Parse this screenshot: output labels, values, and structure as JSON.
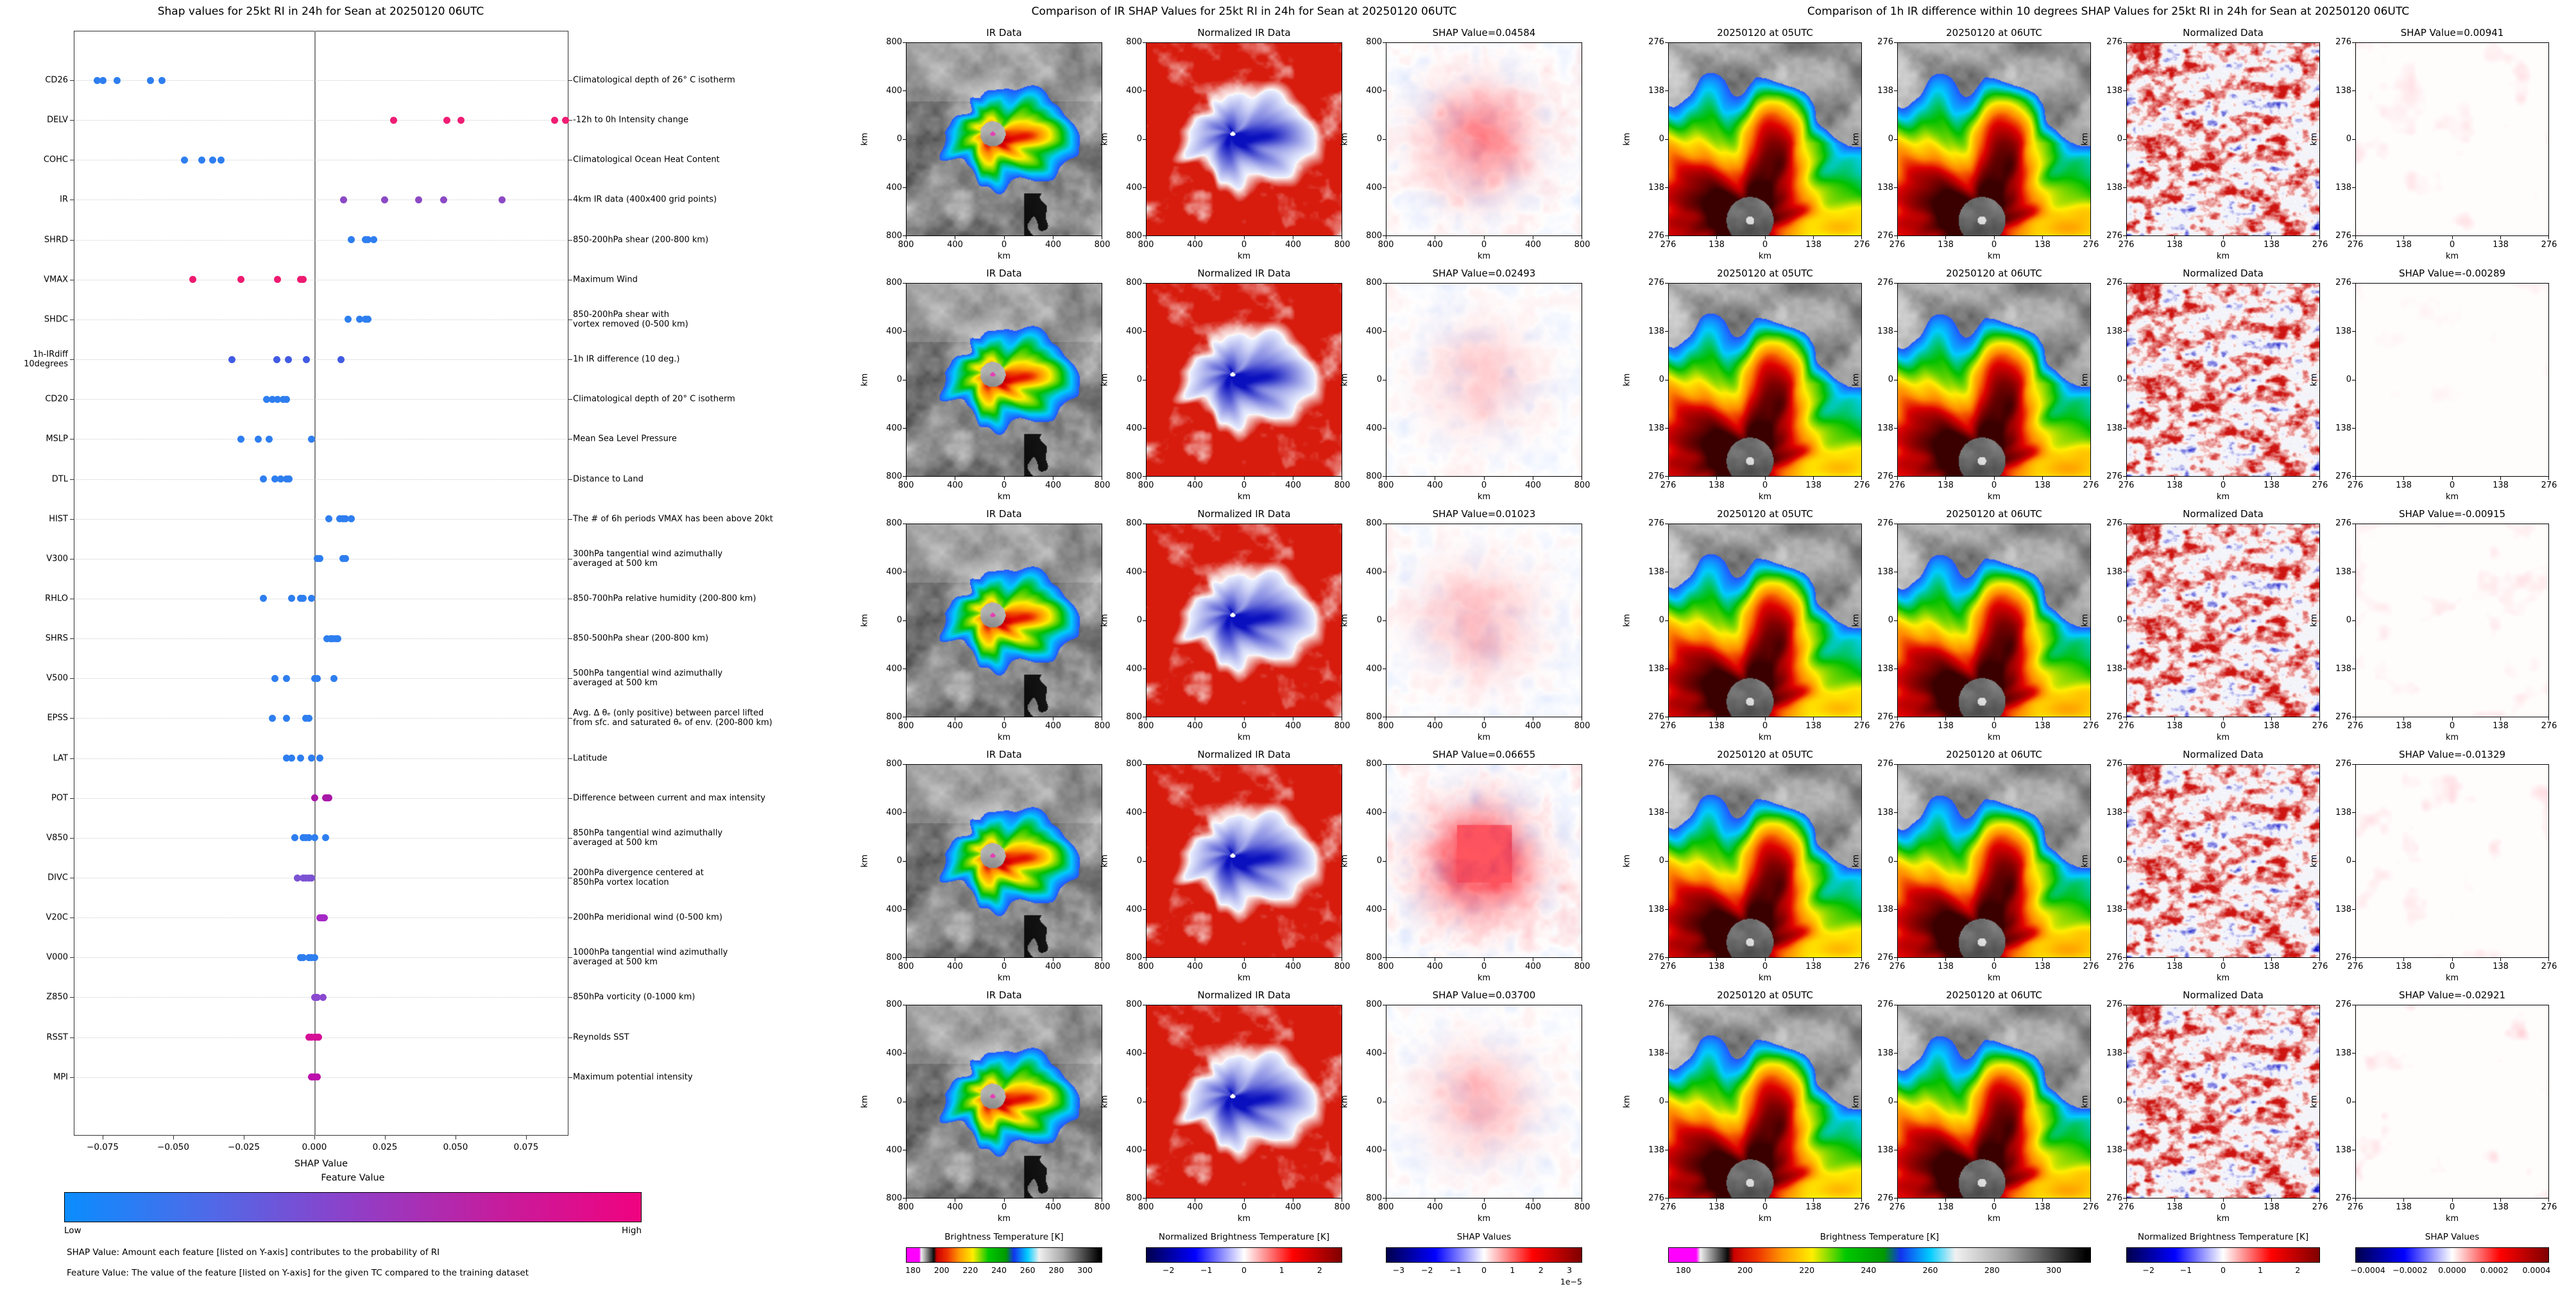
{
  "chart_data": {
    "beeswarm": {
      "type": "scatter",
      "title": "Shap values for 25kt RI in 24h for Sean at 20250120 06UTC",
      "xlabel": "SHAP Value",
      "xlim": [
        -0.0852,
        0.0898
      ],
      "x_ticks": [
        "−0.075",
        "−0.050",
        "−0.025",
        "0.000",
        "0.025",
        "0.050",
        "0.075"
      ],
      "x_tick_values": [
        -0.075,
        -0.05,
        -0.025,
        0,
        0.025,
        0.05,
        0.075
      ],
      "grid": "dotted-horizontal",
      "zero_line": true,
      "features": [
        {
          "code": "CD26",
          "description": "Climatological depth of 26° C isotherm",
          "dot_color": "#2E7EF0",
          "shap_values": [
            -0.077,
            -0.075,
            -0.07,
            -0.058,
            -0.054
          ]
        },
        {
          "code": "DELV",
          "description": "-12h to 0h Intensity change",
          "dot_color": "#F01D74",
          "shap_values": [
            0.028,
            0.047,
            0.052,
            0.085,
            0.089
          ]
        },
        {
          "code": "COHC",
          "description": "Climatological Ocean Heat Content",
          "dot_color": "#2E7EF0",
          "shap_values": [
            -0.046,
            -0.04,
            -0.036,
            -0.033
          ]
        },
        {
          "code": "IR",
          "description": "4km IR data (400x400 grid points)",
          "dot_color": "#8C49C4",
          "shap_values": [
            0.01023,
            0.02493,
            0.037,
            0.04584,
            0.06655
          ]
        },
        {
          "code": "SHRD",
          "description": "850-200hPa shear (200-800 km)",
          "dot_color": "#2E7EF0",
          "shap_values": [
            0.013,
            0.018,
            0.019,
            0.021
          ]
        },
        {
          "code": "VMAX",
          "description": "Maximum Wind",
          "dot_color": "#EE1A70",
          "shap_values": [
            -0.043,
            -0.026,
            -0.013,
            -0.005,
            -0.004
          ]
        },
        {
          "code": "SHDC",
          "description": "850-200hPa shear with\nvortex removed (0-500 km)",
          "dot_color": "#2E7EF0",
          "shap_values": [
            0.012,
            0.016,
            0.018,
            0.019
          ]
        },
        {
          "code": "1h-IRdiff\n10degrees",
          "description": "1h IR difference (10 deg.)",
          "dot_color": "#415BE4",
          "shap_values": [
            -0.02921,
            -0.01329,
            -0.00915,
            -0.00289,
            0.00941
          ]
        },
        {
          "code": "CD20",
          "description": "Climatological depth of 20° C isotherm",
          "dot_color": "#2E7EF0",
          "shap_values": [
            -0.017,
            -0.015,
            -0.013,
            -0.011,
            -0.01
          ]
        },
        {
          "code": "MSLP",
          "description": "Mean Sea Level Pressure",
          "dot_color": "#2E7EF0",
          "shap_values": [
            -0.026,
            -0.02,
            -0.016,
            -0.001
          ]
        },
        {
          "code": "DTL",
          "description": "Distance to Land",
          "dot_color": "#2E7EF0",
          "shap_values": [
            -0.018,
            -0.014,
            -0.012,
            -0.01,
            -0.009
          ]
        },
        {
          "code": "HIST",
          "description": "The # of 6h periods VMAX has been above 20kt",
          "dot_color": "#2E7EF0",
          "shap_values": [
            0.005,
            0.009,
            0.01,
            0.011,
            0.013
          ]
        },
        {
          "code": "V300",
          "description": "300hPa tangential wind azimuthally\naveraged at 500 km",
          "dot_color": "#2E7EF0",
          "shap_values": [
            0.001,
            0.002,
            0.01,
            0.011
          ]
        },
        {
          "code": "RHLO",
          "description": "850-700hPa relative humidity (200-800 km)",
          "dot_color": "#2E7EF0",
          "shap_values": [
            -0.018,
            -0.008,
            -0.005,
            -0.004,
            -0.001
          ]
        },
        {
          "code": "SHRS",
          "description": "850-500hPa shear (200-800 km)",
          "dot_color": "#2E7EF0",
          "shap_values": [
            0.0045,
            0.0057,
            0.0064,
            0.0075,
            0.0084
          ]
        },
        {
          "code": "V500",
          "description": "500hPa tangential wind azimuthally\naveraged at 500 km",
          "dot_color": "#2E7EF0",
          "shap_values": [
            -0.014,
            -0.01,
            0.0,
            0.001,
            0.007
          ]
        },
        {
          "code": "EPSS",
          "description": "Avg. Δ θₑ (only positive) between parcel lifted\nfrom sfc. and saturated θₑ of env. (200-800 km)",
          "dot_color": "#2E7EF0",
          "shap_values": [
            -0.015,
            -0.01,
            -0.003,
            -0.002
          ]
        },
        {
          "code": "LAT",
          "description": "Latitude",
          "dot_color": "#2E7EF0",
          "shap_values": [
            -0.01,
            -0.008,
            -0.005,
            -0.001,
            0.002
          ]
        },
        {
          "code": "POT",
          "description": "Difference between current and max intensity",
          "dot_color": "#A819A8",
          "shap_values": [
            0.0,
            0.004,
            0.0045,
            0.005
          ]
        },
        {
          "code": "V850",
          "description": "850hPa tangential wind azimuthally\naveraged at 500 km",
          "dot_color": "#2E7EF0",
          "shap_values": [
            -0.007,
            -0.004,
            -0.003,
            -0.002,
            0.0,
            0.004
          ]
        },
        {
          "code": "DIVC",
          "description": "200hPa divergence centered at\n850hPa vortex location",
          "dot_color": "#7B52D4",
          "shap_values": [
            -0.006,
            -0.004,
            -0.003,
            -0.002,
            -0.001
          ]
        },
        {
          "code": "V20C",
          "description": "200hPa meridional wind (0-500 km)",
          "dot_color": "#A628C6",
          "shap_values": [
            0.002,
            0.0025,
            0.003,
            0.0035
          ]
        },
        {
          "code": "V000",
          "description": "1000hPa tangential wind azimuthally\naveraged at 500 km",
          "dot_color": "#2E7EF0",
          "shap_values": [
            -0.005,
            -0.004,
            -0.002,
            -0.001,
            0.0
          ]
        },
        {
          "code": "Z850",
          "description": "850hPa vorticity (0-1000 km)",
          "dot_color": "#8A48D0",
          "shap_values": [
            0.0,
            0.0005,
            0.001,
            0.003
          ]
        },
        {
          "code": "RSST",
          "description": "Reynolds SST",
          "dot_color": "#D50F96",
          "shap_values": [
            -0.002,
            -0.001,
            0.0,
            0.0005,
            0.0015
          ]
        },
        {
          "code": "MPI",
          "description": "Maximum potential intensity",
          "dot_color": "#BC10AC",
          "shap_values": [
            -0.001,
            -0.0005,
            0.0,
            0.001
          ]
        }
      ],
      "colorbar": {
        "title": "Feature Value",
        "low": "Low",
        "high": "High",
        "gradient": [
          "#0A8DFE",
          "#4F6AE8",
          "#8F3FC8",
          "#C51D9E",
          "#F0027F"
        ]
      },
      "caption": [
        "SHAP Value: Amount each feature [listed on Y-axis] contributes to the probability of RI",
        "Feature Value: The value of the feature [listed on Y-axis] for the given TC compared to the training dataset"
      ]
    },
    "ir_panel": {
      "type": "heatmap",
      "title": "Comparison of IR SHAP Values for 25kt RI in 24h for Sean at 20250120 06UTC",
      "column_titles": [
        "IR Data",
        "Normalized IR Data"
      ],
      "row_shap_labels": [
        "SHAP Value=0.04584",
        "SHAP Value=0.02493",
        "SHAP Value=0.01023",
        "SHAP Value=0.06655",
        "SHAP Value=0.03700"
      ],
      "shap_values": [
        0.04584,
        0.02493,
        0.01023,
        0.06655,
        0.037
      ],
      "axis_ticks": [
        "800",
        "400",
        "0",
        "400",
        "800"
      ],
      "axis_unit": "km",
      "colorbars": [
        {
          "title": "Brightness Temperature [K]",
          "ticks": [
            "180",
            "200",
            "220",
            "240",
            "260",
            "280",
            "300"
          ],
          "palette": "ir"
        },
        {
          "title": "Normalized Brightness Temperature [K]",
          "ticks": [
            "−2",
            "−1",
            "0",
            "1",
            "2"
          ],
          "palette": "seismic"
        },
        {
          "title": "SHAP Values",
          "ticks": [
            "−3",
            "−2",
            "−1",
            "0",
            "1",
            "2",
            "3"
          ],
          "exponent": "1e−5",
          "palette": "seismic"
        }
      ]
    },
    "irdiff_panel": {
      "type": "heatmap",
      "title": "Comparison of 1h IR difference within 10 degrees SHAP Values for 25kt RI in 24h for Sean at 20250120 06UTC",
      "column_titles": [
        "20250120 at 05UTC",
        "20250120 at 06UTC",
        "Normalized Data"
      ],
      "row_shap_labels": [
        "SHAP Value=0.00941",
        "SHAP Value=-0.00289",
        "SHAP Value=-0.00915",
        "SHAP Value=-0.01329",
        "SHAP Value=-0.02921"
      ],
      "shap_values": [
        0.00941,
        -0.00289,
        -0.00915,
        -0.01329,
        -0.02921
      ],
      "axis_ticks": [
        "276",
        "138",
        "0",
        "138",
        "276"
      ],
      "axis_unit": "km",
      "colorbars": [
        {
          "title": "Brightness Temperature [K]",
          "ticks": [
            "180",
            "200",
            "220",
            "240",
            "260",
            "280",
            "300"
          ],
          "palette": "ir"
        },
        {
          "title": "Normalized Brightness Temperature [K]",
          "ticks": [
            "−2",
            "−1",
            "0",
            "1",
            "2"
          ],
          "palette": "seismic"
        },
        {
          "title": "SHAP Values",
          "ticks": [
            "−0.0004",
            "−0.0002",
            "0.0000",
            "0.0002",
            "0.0004"
          ],
          "palette": "seismic"
        }
      ]
    }
  }
}
